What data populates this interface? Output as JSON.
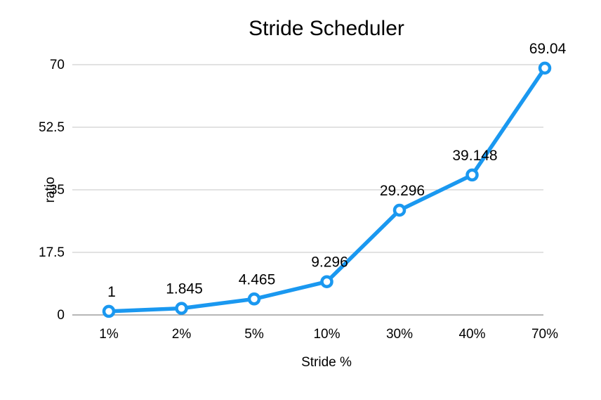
{
  "chart_data": {
    "type": "line",
    "title": "Stride Scheduler",
    "xlabel": "Stride %",
    "ylabel": "ratio",
    "categories": [
      "1%",
      "2%",
      "5%",
      "10%",
      "30%",
      "40%",
      "70%"
    ],
    "series": [
      {
        "values": [
          1,
          1.845,
          4.465,
          9.296,
          29.296,
          39.148,
          69.04
        ],
        "labels": [
          "1",
          "1.845",
          "4.465",
          "9.296",
          "29.296",
          "39.148",
          "69.04"
        ],
        "color": "#1a98f0"
      }
    ],
    "ylim": [
      0,
      70
    ],
    "yticks": [
      0,
      17.5,
      35,
      52.5,
      70
    ],
    "ytick_labels": [
      "0",
      "17.5",
      "35",
      "52.5",
      "70"
    ],
    "grid": true,
    "legend": "none"
  }
}
